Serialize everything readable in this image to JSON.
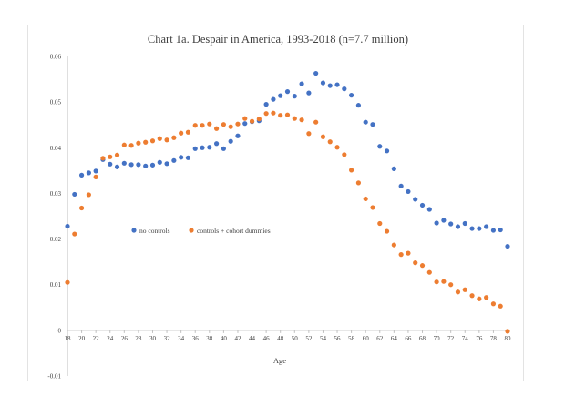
{
  "chart_data": {
    "type": "scatter",
    "title": "Chart 1a.  Despair in America, 1993-2018 (n=7.7 million)",
    "xlabel": "Age",
    "ylabel": "",
    "xlim": [
      18,
      80
    ],
    "ylim": [
      -0.01,
      0.06
    ],
    "x_ticks": [
      "18",
      "20",
      "22",
      "24",
      "26",
      "28",
      "30",
      "32",
      "34",
      "36",
      "38",
      "40",
      "42",
      "44",
      "46",
      "48",
      "50",
      "52",
      "54",
      "56",
      "58",
      "60",
      "62",
      "64",
      "66",
      "68",
      "70",
      "72",
      "74",
      "76",
      "78",
      "80"
    ],
    "y_ticks": [
      "0.06",
      "0.05",
      "0.04",
      "0.03",
      "0.02",
      "0.01",
      "0",
      "-0.01"
    ],
    "grid": false,
    "legend_position": "center-left",
    "colors": {
      "no_controls": "#4472c4",
      "controls": "#ed7d31"
    },
    "x": [
      18,
      19,
      20,
      21,
      22,
      23,
      24,
      25,
      26,
      27,
      28,
      29,
      30,
      31,
      32,
      33,
      34,
      35,
      36,
      37,
      38,
      39,
      40,
      41,
      42,
      43,
      44,
      45,
      46,
      47,
      48,
      49,
      50,
      51,
      52,
      53,
      54,
      55,
      56,
      57,
      58,
      59,
      60,
      61,
      62,
      63,
      64,
      65,
      66,
      67,
      68,
      69,
      70,
      71,
      72,
      73,
      74,
      75,
      76,
      77,
      78,
      79,
      80
    ],
    "series": [
      {
        "name": "no controls",
        "values": [
          0.0228,
          0.0298,
          0.034,
          0.0345,
          0.0349,
          0.0374,
          0.0364,
          0.0358,
          0.0366,
          0.0363,
          0.0363,
          0.036,
          0.0362,
          0.0368,
          0.0365,
          0.0372,
          0.0379,
          0.0378,
          0.0398,
          0.04,
          0.0401,
          0.0409,
          0.0398,
          0.0414,
          0.0426,
          0.0453,
          0.0457,
          0.0459,
          0.0495,
          0.0506,
          0.0514,
          0.0523,
          0.0513,
          0.054,
          0.052,
          0.0563,
          0.0542,
          0.0536,
          0.0538,
          0.0529,
          0.0515,
          0.0493,
          0.0456,
          0.0451,
          0.0403,
          0.0393,
          0.0354,
          0.0316,
          0.0304,
          0.0287,
          0.0274,
          0.0265,
          0.0235,
          0.0241,
          0.0233,
          0.0227,
          0.0234,
          0.0223,
          0.0223,
          0.0227,
          0.0219,
          0.022,
          0.0184
        ]
      },
      {
        "name": "controls + cohort dummies",
        "values": [
          0.0105,
          0.0211,
          0.0268,
          0.0297,
          0.0336,
          0.0377,
          0.038,
          0.0384,
          0.0406,
          0.0405,
          0.041,
          0.0412,
          0.0415,
          0.042,
          0.0417,
          0.0422,
          0.0432,
          0.0434,
          0.0449,
          0.0449,
          0.0452,
          0.0442,
          0.0451,
          0.0446,
          0.0452,
          0.0464,
          0.0458,
          0.0463,
          0.0475,
          0.0476,
          0.0471,
          0.0472,
          0.0464,
          0.0461,
          0.0431,
          0.0456,
          0.0424,
          0.0413,
          0.0401,
          0.0385,
          0.0351,
          0.0323,
          0.0288,
          0.0269,
          0.0234,
          0.0217,
          0.0187,
          0.0166,
          0.0169,
          0.0148,
          0.0142,
          0.0127,
          0.0106,
          0.0107,
          0.01,
          0.0084,
          0.0089,
          0.0076,
          0.0069,
          0.0072,
          0.0058,
          0.0053,
          -0.0002
        ]
      }
    ]
  }
}
